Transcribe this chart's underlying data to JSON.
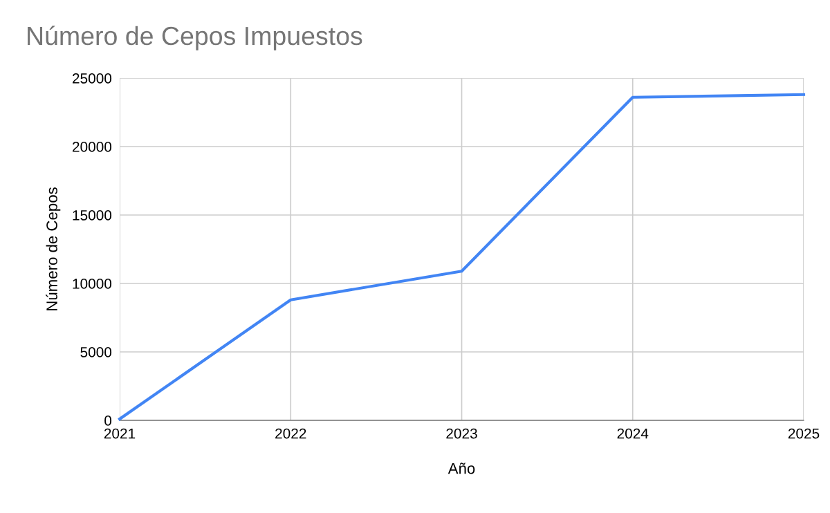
{
  "chart_data": {
    "type": "line",
    "title": "Número de Cepos Impuestos",
    "xlabel": "Año",
    "ylabel": "Número de Cepos",
    "x": [
      2021,
      2022,
      2023,
      2024,
      2025
    ],
    "series": [
      {
        "color": "#4285f4",
        "values": [
          100,
          8800,
          10900,
          23600,
          23800
        ]
      }
    ],
    "xlim": [
      2021,
      2025
    ],
    "xticks": [
      2021,
      2022,
      2023,
      2024,
      2025
    ],
    "ylim": [
      0,
      25000
    ],
    "yticks": [
      0,
      5000,
      10000,
      15000,
      20000,
      25000
    ],
    "grid": true,
    "marker": "none",
    "line_style": "solid"
  }
}
